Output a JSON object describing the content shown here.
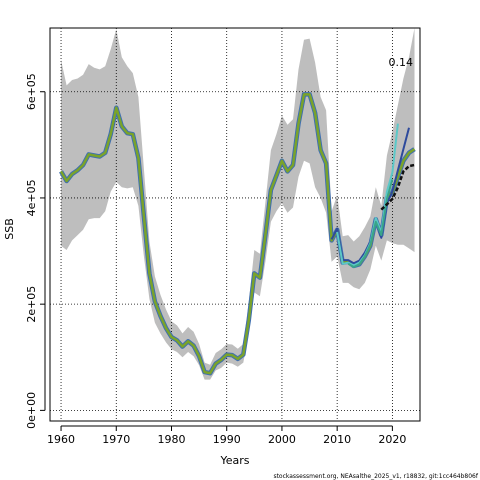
{
  "chart_data": {
    "type": "line",
    "xlabel": "Years",
    "ylabel": "SSB",
    "annotation": "0.14",
    "footer": "stockassessment.org, NEAsalthe_2025_v1, r18832, git:1cc464b806f",
    "xlim": [
      1958,
      2025
    ],
    "ylim": [
      -20000,
      720000
    ],
    "xticks": [
      1960,
      1970,
      1980,
      1990,
      2000,
      2010,
      2020
    ],
    "yticks": [
      0,
      200000,
      400000,
      600000
    ],
    "ytick_labels": [
      "0e+00",
      "2e+05",
      "4e+05",
      "6e+05"
    ],
    "grid": true,
    "series": [
      {
        "color": "#7aa32a",
        "band_color": "#bebebe",
        "x": [
          1960,
          1961,
          1962,
          1963,
          1964,
          1965,
          1966,
          1967,
          1968,
          1969,
          1970,
          1971,
          1972,
          1973,
          1974,
          1975,
          1976,
          1977,
          1978,
          1979,
          1980,
          1981,
          1982,
          1983,
          1984,
          1985,
          1986,
          1987,
          1988,
          1989,
          1990,
          1991,
          1992,
          1993,
          1994,
          1995,
          1996,
          1997,
          1998,
          1999,
          2000,
          2001,
          2002,
          2003,
          2004,
          2005,
          2006,
          2007,
          2008,
          2009,
          2010,
          2011,
          2012,
          2013,
          2014,
          2015,
          2016,
          2017,
          2018,
          2019,
          2020,
          2021,
          2022,
          2023,
          2024
        ],
        "values": [
          450000,
          432000,
          445000,
          452000,
          462000,
          482000,
          480000,
          478000,
          485000,
          520000,
          570000,
          535000,
          522000,
          520000,
          475000,
          365000,
          258000,
          205000,
          178000,
          155000,
          138000,
          132000,
          120000,
          130000,
          122000,
          102000,
          72000,
          70000,
          88000,
          95000,
          105000,
          104000,
          97000,
          105000,
          170000,
          258000,
          250000,
          330000,
          415000,
          442000,
          470000,
          450000,
          462000,
          540000,
          595000,
          595000,
          560000,
          490000,
          465000,
          320000,
          340000,
          278000,
          280000,
          272000,
          275000,
          290000,
          310000,
          360000,
          330000,
          400000,
          410000,
          440000,
          470000,
          485000,
          492000
        ],
        "low": [
          310000,
          302000,
          320000,
          330000,
          340000,
          360000,
          362000,
          362000,
          375000,
          412000,
          430000,
          420000,
          418000,
          420000,
          385000,
          290000,
          210000,
          165000,
          145000,
          128000,
          115000,
          110000,
          100000,
          110000,
          102000,
          85000,
          58000,
          58000,
          75000,
          80000,
          90000,
          88000,
          82000,
          90000,
          145000,
          222000,
          215000,
          280000,
          355000,
          375000,
          390000,
          372000,
          382000,
          440000,
          470000,
          465000,
          420000,
          400000,
          372000,
          280000,
          290000,
          240000,
          240000,
          232000,
          228000,
          240000,
          265000,
          310000,
          282000,
          320000,
          315000,
          312000,
          312000,
          305000,
          298000
        ],
        "high": [
          660000,
          612000,
          622000,
          625000,
          632000,
          652000,
          645000,
          642000,
          648000,
          680000,
          718000,
          665000,
          648000,
          635000,
          590000,
          455000,
          318000,
          252000,
          218000,
          190000,
          168000,
          160000,
          145000,
          157000,
          148000,
          125000,
          90000,
          86000,
          108000,
          115000,
          125000,
          124000,
          116000,
          125000,
          205000,
          302000,
          295000,
          392000,
          490000,
          520000,
          555000,
          538000,
          548000,
          642000,
          698000,
          700000,
          655000,
          590000,
          565000,
          375000,
          405000,
          328000,
          330000,
          318000,
          328000,
          345000,
          365000,
          420000,
          385000,
          480000,
          525000,
          575000,
          625000,
          665000,
          720000
        ]
      },
      {
        "color": "#2e4a9c",
        "x": [
          2009,
          2010,
          2011,
          2012,
          2013,
          2014,
          2015,
          2016,
          2017,
          2018,
          2019,
          2020,
          2021,
          2022,
          2023
        ],
        "values": [
          322000,
          342000,
          283000,
          283000,
          277000,
          282000,
          297000,
          318000,
          358000,
          325000,
          390000,
          412000,
          452000,
          492000,
          532000
        ]
      },
      {
        "color": "#5bc8c8",
        "x": [
          2010,
          2011,
          2012,
          2013,
          2014,
          2015,
          2016,
          2017,
          2018,
          2019,
          2020,
          2021
        ],
        "values": [
          336000,
          276000,
          278000,
          273000,
          278000,
          292000,
          315000,
          362000,
          335000,
          412000,
          448000,
          540000
        ]
      },
      {
        "color": "#3aa58a",
        "x": [
          2012,
          2013,
          2014,
          2015,
          2016,
          2017,
          2018,
          2019,
          2020
        ],
        "values": [
          276000,
          270000,
          275000,
          290000,
          312000,
          355000,
          330000,
          398000,
          435000
        ]
      },
      {
        "color": "#111111",
        "dashed": true,
        "x": [
          2018,
          2019,
          2020,
          2021,
          2022,
          2023,
          2024
        ],
        "values": [
          378000,
          388000,
          398000,
          420000,
          450000,
          460000,
          462000
        ]
      }
    ]
  }
}
